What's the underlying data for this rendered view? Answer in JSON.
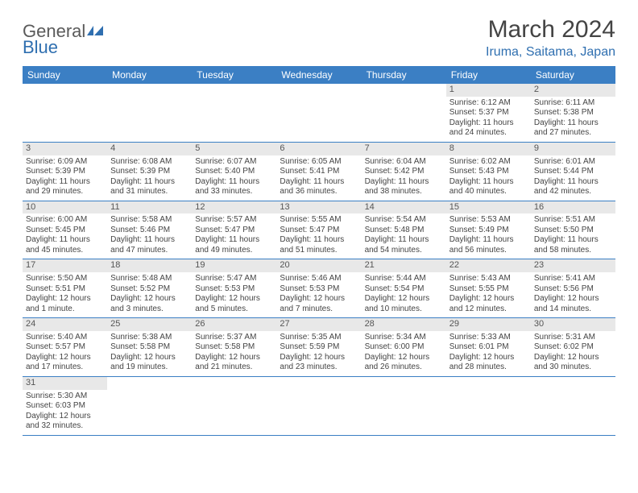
{
  "logo": {
    "text1": "General",
    "text2": "Blue"
  },
  "title": "March 2024",
  "location": "Iruma, Saitama, Japan",
  "colors": {
    "header_bg": "#3b7fc4",
    "header_text": "#ffffff",
    "accent": "#2f6fb0",
    "daynum_bg": "#e8e8e8",
    "text": "#444444",
    "border": "#3b7fc4"
  },
  "typography": {
    "title_fontsize": 30,
    "location_fontsize": 16,
    "dayheader_fontsize": 12,
    "cell_fontsize": 10
  },
  "day_headers": [
    "Sunday",
    "Monday",
    "Tuesday",
    "Wednesday",
    "Thursday",
    "Friday",
    "Saturday"
  ],
  "weeks": [
    [
      {
        "day": "",
        "sunrise": "",
        "sunset": "",
        "daylight": ""
      },
      {
        "day": "",
        "sunrise": "",
        "sunset": "",
        "daylight": ""
      },
      {
        "day": "",
        "sunrise": "",
        "sunset": "",
        "daylight": ""
      },
      {
        "day": "",
        "sunrise": "",
        "sunset": "",
        "daylight": ""
      },
      {
        "day": "",
        "sunrise": "",
        "sunset": "",
        "daylight": ""
      },
      {
        "day": "1",
        "sunrise": "Sunrise: 6:12 AM",
        "sunset": "Sunset: 5:37 PM",
        "daylight": "Daylight: 11 hours and 24 minutes."
      },
      {
        "day": "2",
        "sunrise": "Sunrise: 6:11 AM",
        "sunset": "Sunset: 5:38 PM",
        "daylight": "Daylight: 11 hours and 27 minutes."
      }
    ],
    [
      {
        "day": "3",
        "sunrise": "Sunrise: 6:09 AM",
        "sunset": "Sunset: 5:39 PM",
        "daylight": "Daylight: 11 hours and 29 minutes."
      },
      {
        "day": "4",
        "sunrise": "Sunrise: 6:08 AM",
        "sunset": "Sunset: 5:39 PM",
        "daylight": "Daylight: 11 hours and 31 minutes."
      },
      {
        "day": "5",
        "sunrise": "Sunrise: 6:07 AM",
        "sunset": "Sunset: 5:40 PM",
        "daylight": "Daylight: 11 hours and 33 minutes."
      },
      {
        "day": "6",
        "sunrise": "Sunrise: 6:05 AM",
        "sunset": "Sunset: 5:41 PM",
        "daylight": "Daylight: 11 hours and 36 minutes."
      },
      {
        "day": "7",
        "sunrise": "Sunrise: 6:04 AM",
        "sunset": "Sunset: 5:42 PM",
        "daylight": "Daylight: 11 hours and 38 minutes."
      },
      {
        "day": "8",
        "sunrise": "Sunrise: 6:02 AM",
        "sunset": "Sunset: 5:43 PM",
        "daylight": "Daylight: 11 hours and 40 minutes."
      },
      {
        "day": "9",
        "sunrise": "Sunrise: 6:01 AM",
        "sunset": "Sunset: 5:44 PM",
        "daylight": "Daylight: 11 hours and 42 minutes."
      }
    ],
    [
      {
        "day": "10",
        "sunrise": "Sunrise: 6:00 AM",
        "sunset": "Sunset: 5:45 PM",
        "daylight": "Daylight: 11 hours and 45 minutes."
      },
      {
        "day": "11",
        "sunrise": "Sunrise: 5:58 AM",
        "sunset": "Sunset: 5:46 PM",
        "daylight": "Daylight: 11 hours and 47 minutes."
      },
      {
        "day": "12",
        "sunrise": "Sunrise: 5:57 AM",
        "sunset": "Sunset: 5:47 PM",
        "daylight": "Daylight: 11 hours and 49 minutes."
      },
      {
        "day": "13",
        "sunrise": "Sunrise: 5:55 AM",
        "sunset": "Sunset: 5:47 PM",
        "daylight": "Daylight: 11 hours and 51 minutes."
      },
      {
        "day": "14",
        "sunrise": "Sunrise: 5:54 AM",
        "sunset": "Sunset: 5:48 PM",
        "daylight": "Daylight: 11 hours and 54 minutes."
      },
      {
        "day": "15",
        "sunrise": "Sunrise: 5:53 AM",
        "sunset": "Sunset: 5:49 PM",
        "daylight": "Daylight: 11 hours and 56 minutes."
      },
      {
        "day": "16",
        "sunrise": "Sunrise: 5:51 AM",
        "sunset": "Sunset: 5:50 PM",
        "daylight": "Daylight: 11 hours and 58 minutes."
      }
    ],
    [
      {
        "day": "17",
        "sunrise": "Sunrise: 5:50 AM",
        "sunset": "Sunset: 5:51 PM",
        "daylight": "Daylight: 12 hours and 1 minute."
      },
      {
        "day": "18",
        "sunrise": "Sunrise: 5:48 AM",
        "sunset": "Sunset: 5:52 PM",
        "daylight": "Daylight: 12 hours and 3 minutes."
      },
      {
        "day": "19",
        "sunrise": "Sunrise: 5:47 AM",
        "sunset": "Sunset: 5:53 PM",
        "daylight": "Daylight: 12 hours and 5 minutes."
      },
      {
        "day": "20",
        "sunrise": "Sunrise: 5:46 AM",
        "sunset": "Sunset: 5:53 PM",
        "daylight": "Daylight: 12 hours and 7 minutes."
      },
      {
        "day": "21",
        "sunrise": "Sunrise: 5:44 AM",
        "sunset": "Sunset: 5:54 PM",
        "daylight": "Daylight: 12 hours and 10 minutes."
      },
      {
        "day": "22",
        "sunrise": "Sunrise: 5:43 AM",
        "sunset": "Sunset: 5:55 PM",
        "daylight": "Daylight: 12 hours and 12 minutes."
      },
      {
        "day": "23",
        "sunrise": "Sunrise: 5:41 AM",
        "sunset": "Sunset: 5:56 PM",
        "daylight": "Daylight: 12 hours and 14 minutes."
      }
    ],
    [
      {
        "day": "24",
        "sunrise": "Sunrise: 5:40 AM",
        "sunset": "Sunset: 5:57 PM",
        "daylight": "Daylight: 12 hours and 17 minutes."
      },
      {
        "day": "25",
        "sunrise": "Sunrise: 5:38 AM",
        "sunset": "Sunset: 5:58 PM",
        "daylight": "Daylight: 12 hours and 19 minutes."
      },
      {
        "day": "26",
        "sunrise": "Sunrise: 5:37 AM",
        "sunset": "Sunset: 5:58 PM",
        "daylight": "Daylight: 12 hours and 21 minutes."
      },
      {
        "day": "27",
        "sunrise": "Sunrise: 5:35 AM",
        "sunset": "Sunset: 5:59 PM",
        "daylight": "Daylight: 12 hours and 23 minutes."
      },
      {
        "day": "28",
        "sunrise": "Sunrise: 5:34 AM",
        "sunset": "Sunset: 6:00 PM",
        "daylight": "Daylight: 12 hours and 26 minutes."
      },
      {
        "day": "29",
        "sunrise": "Sunrise: 5:33 AM",
        "sunset": "Sunset: 6:01 PM",
        "daylight": "Daylight: 12 hours and 28 minutes."
      },
      {
        "day": "30",
        "sunrise": "Sunrise: 5:31 AM",
        "sunset": "Sunset: 6:02 PM",
        "daylight": "Daylight: 12 hours and 30 minutes."
      }
    ],
    [
      {
        "day": "31",
        "sunrise": "Sunrise: 5:30 AM",
        "sunset": "Sunset: 6:03 PM",
        "daylight": "Daylight: 12 hours and 32 minutes."
      },
      {
        "day": "",
        "sunrise": "",
        "sunset": "",
        "daylight": ""
      },
      {
        "day": "",
        "sunrise": "",
        "sunset": "",
        "daylight": ""
      },
      {
        "day": "",
        "sunrise": "",
        "sunset": "",
        "daylight": ""
      },
      {
        "day": "",
        "sunrise": "",
        "sunset": "",
        "daylight": ""
      },
      {
        "day": "",
        "sunrise": "",
        "sunset": "",
        "daylight": ""
      },
      {
        "day": "",
        "sunrise": "",
        "sunset": "",
        "daylight": ""
      }
    ]
  ]
}
